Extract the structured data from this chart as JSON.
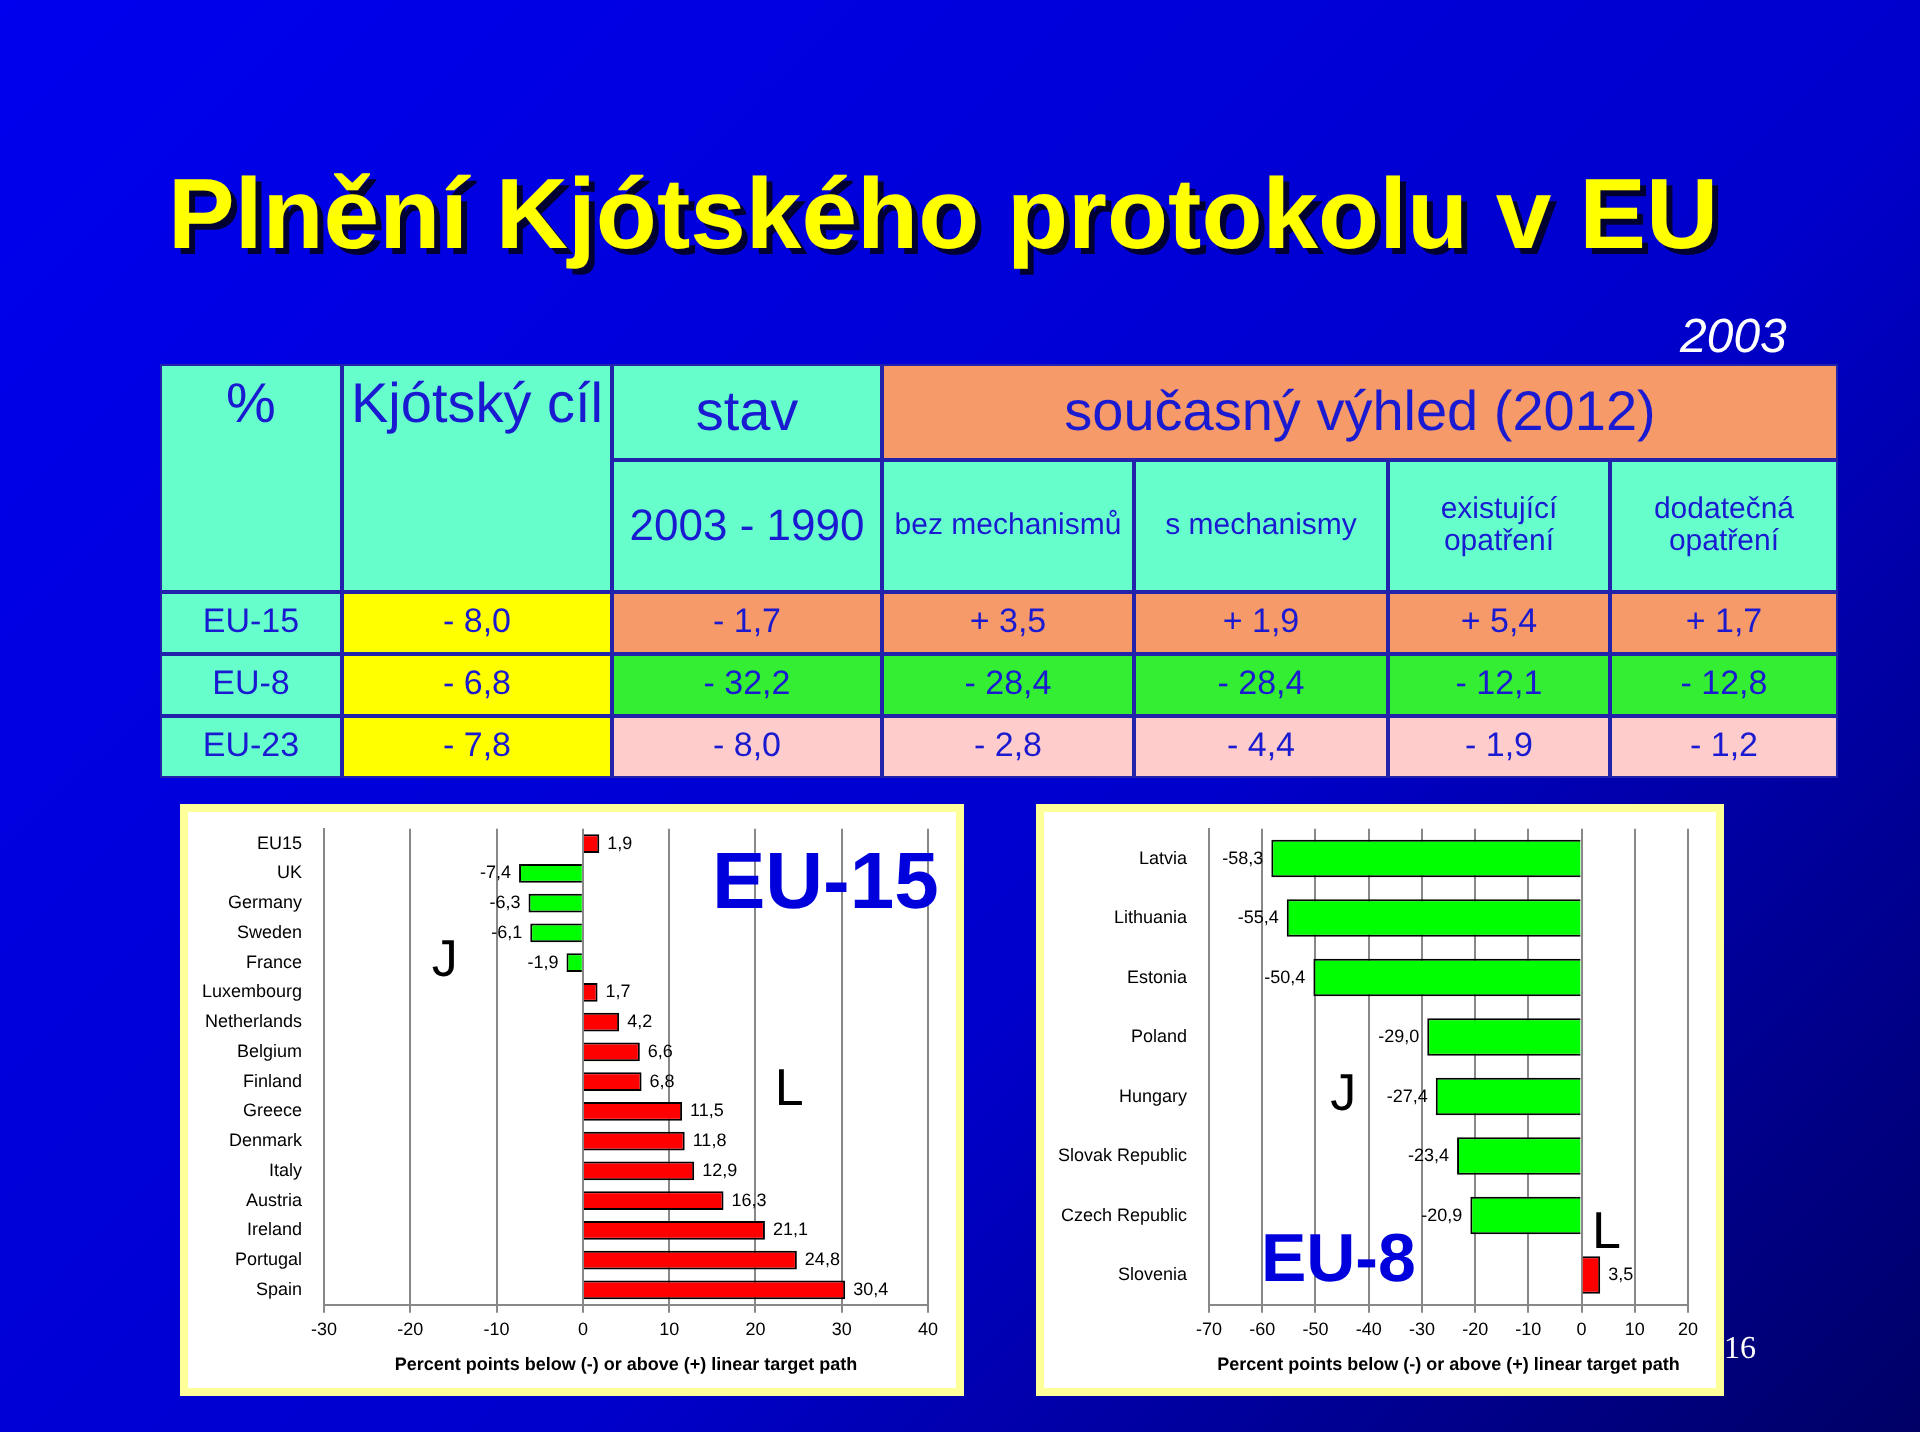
{
  "chart_data": [
    {
      "type": "other",
      "title": "Plnění Kjótského protokolu v EU",
      "annotations": [
        "2003",
        "%",
        "Kjótský cíl",
        "stav",
        "současný výhled (2012)",
        "2003 - 1990",
        "bez mechanismů",
        "s mechanismy",
        "existující opatření",
        "dodatečná opatření",
        "EU-15",
        "- 8,0",
        "- 1,7",
        "+ 3,5",
        "+ 1,9",
        "+ 5,4",
        "+ 1,7",
        "EU-8",
        "- 6,8",
        "- 32,2",
        "- 28,4",
        "- 28,4",
        "- 12,1",
        "- 12,8",
        "EU-23",
        "- 7,8",
        "- 8,0",
        "- 2,8",
        "- 4,4",
        "- 1,9",
        "- 1,2",
        "16"
      ]
    },
    {
      "type": "bar",
      "orientation": "horizontal",
      "categories": [
        "EU15",
        "UK",
        "Germany",
        "Sweden",
        "France",
        "Luxembourg",
        "Netherlands",
        "Belgium",
        "Finland",
        "Greece",
        "Denmark",
        "Italy",
        "Austria",
        "Ireland",
        "Portugal",
        "Spain"
      ],
      "values": [
        1.9,
        -7.4,
        -6.3,
        -6.1,
        -1.9,
        1.7,
        4.2,
        6.6,
        6.8,
        11.5,
        11.8,
        12.9,
        16.3,
        21.1,
        24.8,
        30.4
      ],
      "value_labels": [
        "1,9",
        "-7,4",
        "-6,3",
        "-6,1",
        "-1,9",
        "1,7",
        "4,2",
        "6,6",
        "6,8",
        "11,5",
        "11,8",
        "12,9",
        "16,3",
        "21,1",
        "24,8",
        "30,4"
      ],
      "colors": [
        "#ff0000",
        "#00ff00",
        "#00ff00",
        "#00ff00",
        "#00ff00",
        "#ff0000",
        "#ff0000",
        "#ff0000",
        "#ff0000",
        "#ff0000",
        "#ff0000",
        "#ff0000",
        "#ff0000",
        "#ff0000",
        "#ff0000",
        "#ff0000"
      ],
      "xlim": [
        -30,
        40
      ],
      "xticks": [
        -30,
        -20,
        -10,
        0,
        10,
        20,
        30,
        40
      ],
      "grid": "x",
      "xlabel": "Percent points below (-) or above (+) linear target path",
      "annotations": [
        "EU-15",
        "J",
        "L"
      ]
    },
    {
      "type": "bar",
      "orientation": "horizontal",
      "categories": [
        "Latvia",
        "Lithuania",
        "Estonia",
        "Poland",
        "Hungary",
        "Slovak Republic",
        "Czech Republic",
        "Slovenia"
      ],
      "values": [
        -58.3,
        -55.4,
        -50.4,
        -29.0,
        -27.4,
        -23.4,
        -20.9,
        3.5
      ],
      "value_labels": [
        "-58,3",
        "-55,4",
        "-50,4",
        "-29,0",
        "-27,4",
        "-23,4",
        "-20,9",
        "3,5"
      ],
      "colors": [
        "#00ff00",
        "#00ff00",
        "#00ff00",
        "#00ff00",
        "#00ff00",
        "#00ff00",
        "#00ff00",
        "#ff0000"
      ],
      "xlim": [
        -70,
        20
      ],
      "xticks": [
        -70,
        -60,
        -50,
        -40,
        -30,
        -20,
        -10,
        0,
        10,
        20
      ],
      "grid": "x",
      "xlabel": "Percent points below (-) or above (+) linear target path",
      "annotations": [
        "EU-8",
        "J",
        "L"
      ]
    }
  ]
}
